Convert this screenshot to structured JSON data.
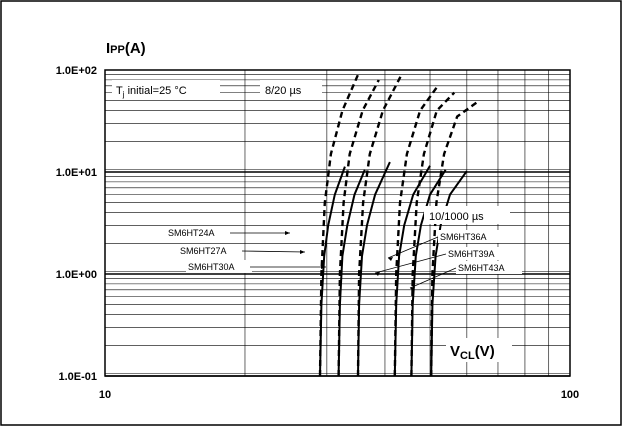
{
  "chart_data": {
    "type": "line",
    "title": "",
    "xlabel": "VCL(V)",
    "ylabel": "IPP(A)",
    "x_scale": "log",
    "y_scale": "log",
    "xlim": [
      10,
      100
    ],
    "ylim": [
      0.1,
      100
    ],
    "grid": true,
    "x_ticks": [
      {
        "value": 10,
        "label": "10"
      },
      {
        "value": 100,
        "label": "100"
      }
    ],
    "y_ticks": [
      {
        "value": 100,
        "label": "1.0E+02"
      },
      {
        "value": 10,
        "label": "1.0E+01"
      },
      {
        "value": 1,
        "label": "1.0E+00"
      },
      {
        "value": 0.1,
        "label": "1.0E-01"
      }
    ],
    "axis_title_y": {
      "main": "I",
      "sub": "PP",
      "unit": "(A)"
    },
    "axis_title_x": {
      "main": "V",
      "sub": "CL",
      "unit": "(V)"
    },
    "annotations": {
      "tj_main": "T",
      "tj_sub": "j",
      "tj_rest": " initial=25 °C",
      "pulse_short": "8/20 µs",
      "pulse_long": "10/1000 µs"
    },
    "series": [
      {
        "name": "SM6HT24A",
        "pulse": "10/1000 µs",
        "style": "solid",
        "points": [
          [
            29.0,
            0.1
          ],
          [
            29.2,
            0.5
          ],
          [
            29.6,
            1.5
          ],
          [
            30.2,
            3
          ],
          [
            31.2,
            6
          ],
          [
            32.8,
            11.3
          ]
        ]
      },
      {
        "name": "SM6HT27A",
        "pulse": "10/1000 µs",
        "style": "solid",
        "points": [
          [
            31.8,
            0.1
          ],
          [
            32.0,
            0.5
          ],
          [
            32.4,
            1.5
          ],
          [
            33.2,
            3
          ],
          [
            34.4,
            6
          ],
          [
            36.2,
            10.5
          ]
        ]
      },
      {
        "name": "SM6HT30A",
        "pulse": "10/1000 µs",
        "style": "solid",
        "points": [
          [
            35.0,
            0.1
          ],
          [
            35.2,
            0.5
          ],
          [
            35.7,
            1.5
          ],
          [
            36.6,
            3
          ],
          [
            38.1,
            6
          ],
          [
            41.0,
            12.5
          ]
        ]
      },
      {
        "name": "SM6HT36A",
        "pulse": "10/1000 µs",
        "style": "solid",
        "points": [
          [
            42.0,
            0.1
          ],
          [
            42.3,
            0.5
          ],
          [
            42.9,
            1.5
          ],
          [
            44.0,
            3
          ],
          [
            46.0,
            6
          ],
          [
            50.0,
            11.5
          ]
        ]
      },
      {
        "name": "SM6HT39A",
        "pulse": "10/1000 µs",
        "style": "solid",
        "points": [
          [
            45.6,
            0.1
          ],
          [
            45.9,
            0.5
          ],
          [
            46.6,
            1.5
          ],
          [
            47.8,
            3
          ],
          [
            50.0,
            6
          ],
          [
            54.0,
            10.5
          ]
        ]
      },
      {
        "name": "SM6HT43A",
        "pulse": "10/1000 µs",
        "style": "solid",
        "points": [
          [
            50.3,
            0.1
          ],
          [
            50.6,
            0.5
          ],
          [
            51.4,
            1.5
          ],
          [
            52.7,
            3
          ],
          [
            55.2,
            6
          ],
          [
            60.0,
            10.2
          ]
        ]
      },
      {
        "name": "SM6HT24A",
        "pulse": "8/20 µs",
        "style": "dashed",
        "points": [
          [
            29.0,
            0.1
          ],
          [
            29.2,
            1
          ],
          [
            29.7,
            5
          ],
          [
            30.6,
            15
          ],
          [
            32.4,
            40
          ],
          [
            35.0,
            90
          ]
        ]
      },
      {
        "name": "SM6HT27A",
        "pulse": "8/20 µs",
        "style": "dashed",
        "points": [
          [
            31.8,
            0.1
          ],
          [
            32.0,
            1
          ],
          [
            32.6,
            5
          ],
          [
            33.6,
            15
          ],
          [
            35.8,
            40
          ],
          [
            38.8,
            80
          ]
        ]
      },
      {
        "name": "SM6HT30A",
        "pulse": "8/20 µs",
        "style": "dashed",
        "points": [
          [
            35.0,
            0.1
          ],
          [
            35.2,
            1
          ],
          [
            35.9,
            5
          ],
          [
            37.1,
            15
          ],
          [
            39.6,
            40
          ],
          [
            43.3,
            88
          ]
        ]
      },
      {
        "name": "SM6HT36A",
        "pulse": "8/20 µs",
        "style": "dashed",
        "points": [
          [
            42.0,
            0.1
          ],
          [
            42.3,
            1
          ],
          [
            43.1,
            5
          ],
          [
            44.6,
            15
          ],
          [
            47.6,
            40
          ],
          [
            52.0,
            70
          ]
        ]
      },
      {
        "name": "SM6HT39A",
        "pulse": "8/20 µs",
        "style": "dashed",
        "points": [
          [
            45.6,
            0.1
          ],
          [
            45.9,
            1
          ],
          [
            46.8,
            5
          ],
          [
            48.5,
            15
          ],
          [
            51.7,
            40
          ],
          [
            56.4,
            60
          ]
        ]
      },
      {
        "name": "SM6HT43A",
        "pulse": "8/20 µs",
        "style": "dashed",
        "points": [
          [
            50.3,
            0.1
          ],
          [
            50.6,
            1
          ],
          [
            51.6,
            5
          ],
          [
            53.6,
            15
          ],
          [
            57.2,
            35
          ],
          [
            63.0,
            48
          ]
        ]
      }
    ]
  }
}
